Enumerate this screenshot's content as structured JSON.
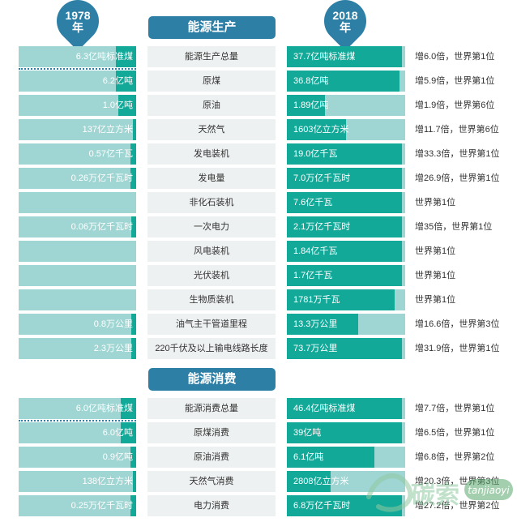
{
  "header": {
    "year_left": "1978",
    "year_left_suffix": "年",
    "year_right": "2018",
    "year_right_suffix": "年"
  },
  "sections": [
    {
      "title": "能源生产",
      "rows": [
        {
          "category": "能源生产总量",
          "v1978": "6.3亿吨标准煤",
          "v2018": "37.7亿吨标准煤",
          "growth": "增6.0倍，世界第1位",
          "fill1978": 0.17,
          "fill2018": 0.97
        },
        {
          "category": "原煤",
          "v1978": "6.2亿吨",
          "v2018": "36.8亿吨",
          "growth": "增5.9倍，世界第1位",
          "fill1978": 0.17,
          "fill2018": 0.95
        },
        {
          "category": "原油",
          "v1978": "1.0亿吨",
          "v2018": "1.89亿吨",
          "growth": "增1.9倍，世界第6位",
          "fill1978": 0.15,
          "fill2018": 0.32
        },
        {
          "category": "天然气",
          "v1978": "137亿立方米",
          "v2018": "1603亿立方米",
          "growth": "增11.7倍，世界第6位",
          "fill1978": 0.03,
          "fill2018": 0.5
        },
        {
          "category": "发电装机",
          "v1978": "0.57亿千瓦",
          "v2018": "19.0亿千瓦",
          "growth": "增33.3倍，世界第1位",
          "fill1978": 0.05,
          "fill2018": 0.97
        },
        {
          "category": "发电量",
          "v1978": "0.26万亿千瓦时",
          "v2018": "7.0万亿千瓦时",
          "growth": "增26.9倍，世界第1位",
          "fill1978": 0.05,
          "fill2018": 0.97
        },
        {
          "category": "非化石装机",
          "v1978": "",
          "v2018": "7.6亿千瓦",
          "growth": "世界第1位",
          "fill1978": 0.0,
          "fill2018": 0.97
        },
        {
          "category": "一次电力",
          "v1978": "0.06万亿千瓦时",
          "v2018": "2.1万亿千瓦时",
          "growth": "增35倍，世界第1位",
          "fill1978": 0.04,
          "fill2018": 0.97
        },
        {
          "category": "风电装机",
          "v1978": "",
          "v2018": "1.84亿千瓦",
          "growth": "世界第1位",
          "fill1978": 0.0,
          "fill2018": 0.97
        },
        {
          "category": "光伏装机",
          "v1978": "",
          "v2018": "1.7亿千瓦",
          "growth": "世界第1位",
          "fill1978": 0.0,
          "fill2018": 0.97
        },
        {
          "category": "生物质装机",
          "v1978": "",
          "v2018": "1781万千瓦",
          "growth": "世界第1位",
          "fill1978": 0.0,
          "fill2018": 0.91
        },
        {
          "category": "油气主干管道里程",
          "v1978": "0.8万公里",
          "v2018": "13.3万公里",
          "growth": "增16.6倍，世界第3位",
          "fill1978": 0.04,
          "fill2018": 0.6
        },
        {
          "category": "220千伏及以上输电线路长度",
          "v1978": "2.3万公里",
          "v2018": "73.7万公里",
          "growth": "增31.9倍，世界第1位",
          "fill1978": 0.04,
          "fill2018": 0.97
        }
      ]
    },
    {
      "title": "能源消费",
      "rows": [
        {
          "category": "能源消费总量",
          "v1978": "6.0亿吨标准煤",
          "v2018": "46.4亿吨标准煤",
          "growth": "增7.7倍，世界第1位",
          "fill1978": 0.13,
          "fill2018": 0.97
        },
        {
          "category": "原煤消费",
          "v1978": "6.0亿吨",
          "v2018": "39亿吨",
          "growth": "增6.5倍，世界第1位",
          "fill1978": 0.13,
          "fill2018": 0.97
        },
        {
          "category": "原油消费",
          "v1978": "0.9亿吨",
          "v2018": "6.1亿吨",
          "growth": "增6.8倍，世界第2位",
          "fill1978": 0.05,
          "fill2018": 0.74
        },
        {
          "category": "天然气消费",
          "v1978": "138亿立方米",
          "v2018": "2808亿立方米",
          "growth": "增20.3倍，世界第3位",
          "fill1978": 0.03,
          "fill2018": 0.37
        },
        {
          "category": "电力消费",
          "v1978": "0.25万亿千瓦时",
          "v2018": "6.8万亿千瓦时",
          "growth": "增27.2倍，世界第2位",
          "fill1978": 0.05,
          "fill2018": 0.97
        }
      ]
    }
  ],
  "chart_data": {
    "type": "bar",
    "categories": [
      "能源生产总量",
      "原煤",
      "原油",
      "天然气",
      "发电装机",
      "发电量",
      "非化石装机",
      "一次电力",
      "风电装机",
      "光伏装机",
      "生物质装机",
      "油气主干管道里程",
      "220千伏及以上输电线路长度",
      "能源消费总量",
      "原煤消费",
      "原油消费",
      "天然气消费",
      "电力消费"
    ],
    "series": [
      {
        "name": "1978年",
        "values": [
          "6.3亿吨标准煤",
          "6.2亿吨",
          "1.0亿吨",
          "137亿立方米",
          "0.57亿千瓦",
          "0.26万亿千瓦时",
          "",
          "0.06万亿千瓦时",
          "",
          "",
          "",
          "0.8万公里",
          "2.3万公里",
          "6.0亿吨标准煤",
          "6.0亿吨",
          "0.9亿吨",
          "138亿立方米",
          "0.25万亿千瓦时"
        ]
      },
      {
        "name": "2018年",
        "values": [
          "37.7亿吨标准煤",
          "36.8亿吨",
          "1.89亿吨",
          "1603亿立方米",
          "19.0亿千瓦",
          "7.0万亿千瓦时",
          "7.6亿千瓦",
          "2.1万亿千瓦时",
          "1.84亿千瓦",
          "1.7亿千瓦",
          "1781万千瓦",
          "13.3万公里",
          "73.7万公里",
          "46.4亿吨标准煤",
          "39亿吨",
          "6.1亿吨",
          "2808亿立方米",
          "6.8万亿千瓦时"
        ]
      }
    ],
    "title": "",
    "xlabel": "",
    "ylabel": ""
  },
  "colors": {
    "accent_blue": "#2e7fa6",
    "bar_fill": "#13a999",
    "bar_track": "#9fd5d2",
    "category_bg": "#eef1f2"
  },
  "watermark": {
    "text": "碳索",
    "domain": "tanjiaoyi"
  }
}
